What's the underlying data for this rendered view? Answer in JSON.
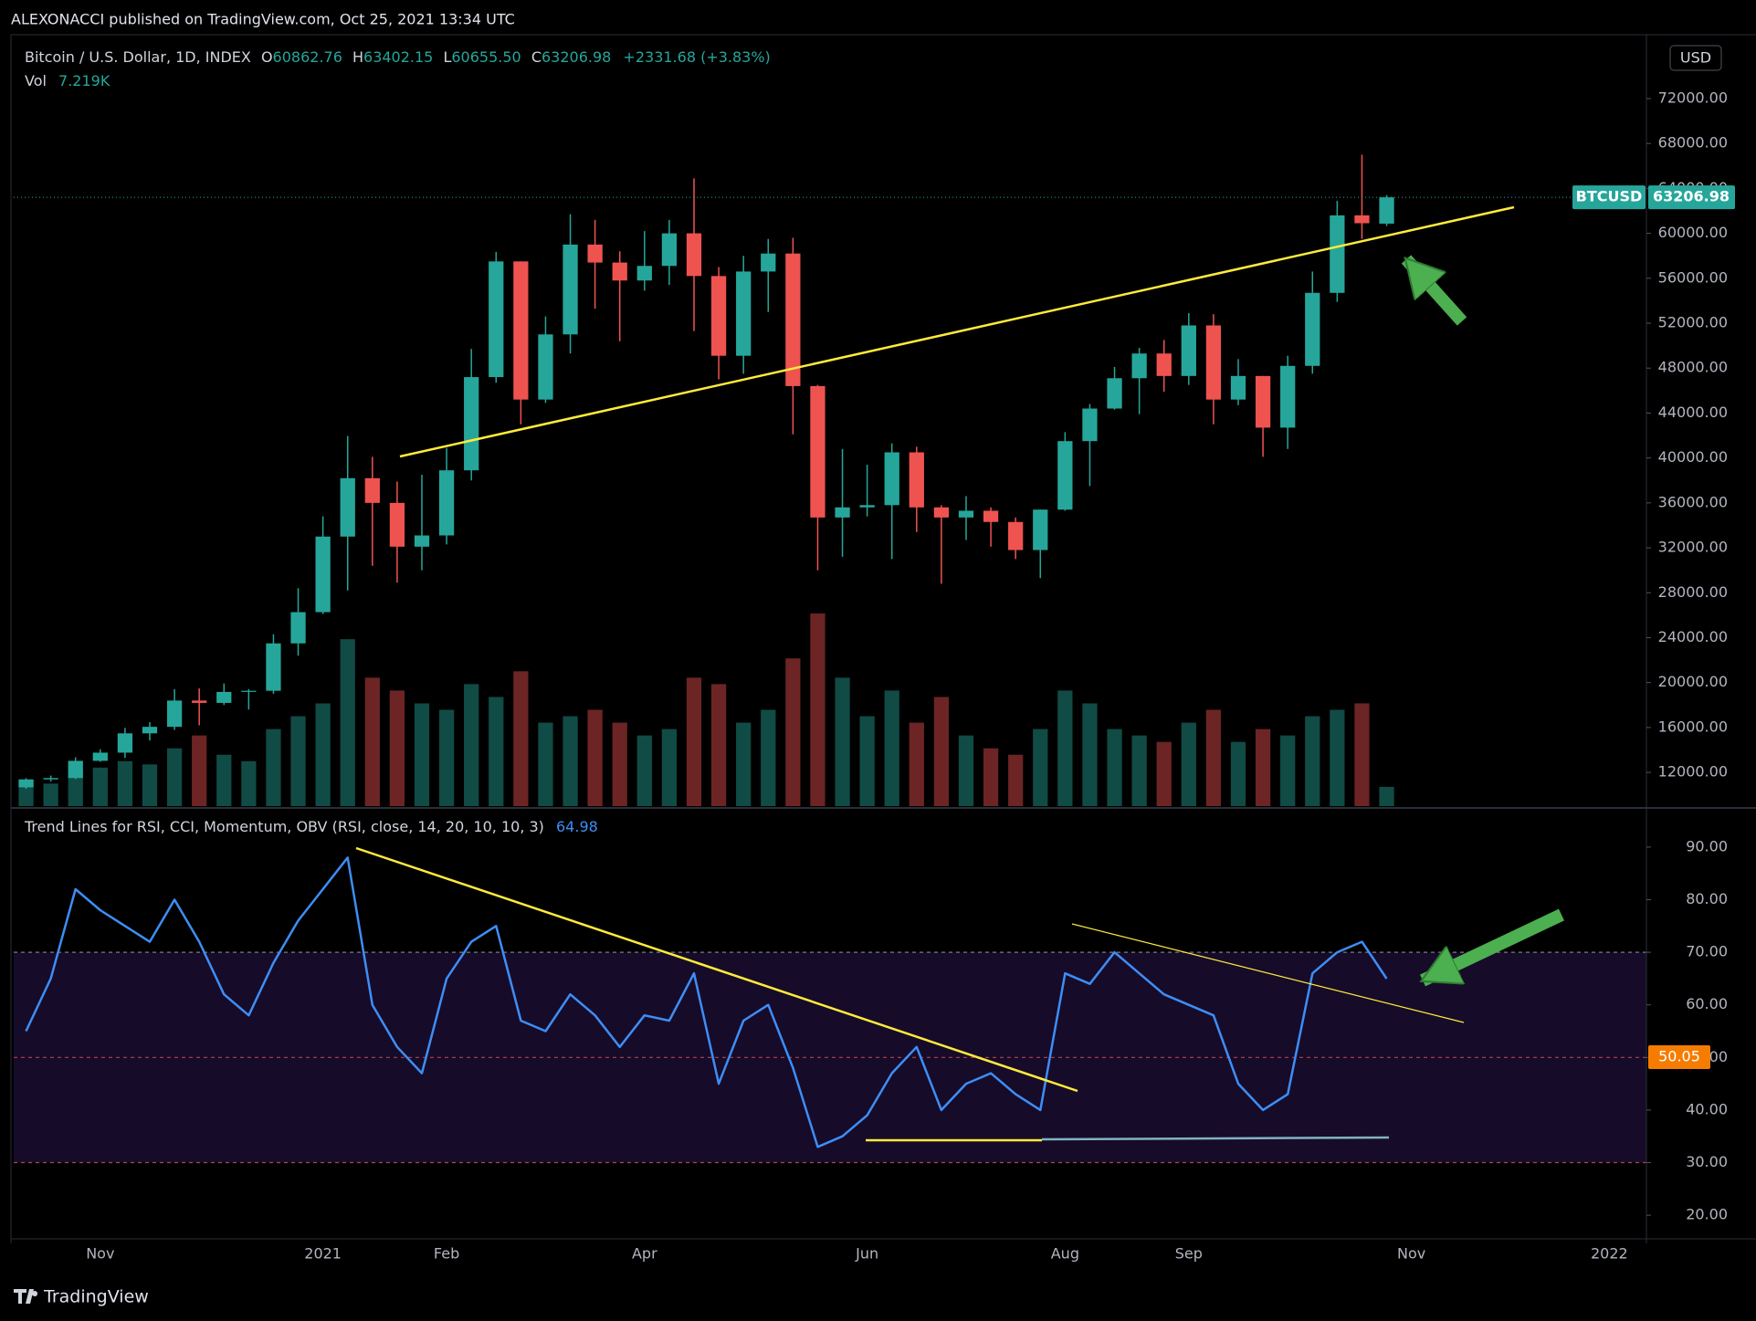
{
  "header": "ALEXONACCI published on TradingView.com, Oct 25, 2021 13:34 UTC",
  "footer": "TradingView",
  "chart_data": [
    {
      "type": "candlestick",
      "title": "Bitcoin / U.S. Dollar, 1D, INDEX",
      "ohlc": [
        {
          "key": "O",
          "value": "60862.76"
        },
        {
          "key": "H",
          "value": "63402.15"
        },
        {
          "key": "L",
          "value": "60655.50"
        },
        {
          "key": "C",
          "value": "63206.98"
        }
      ],
      "change": "+2331.68 (+3.83%)",
      "volume_label": "Vol",
      "volume_value": "7.219K",
      "currency": "USD",
      "symbol": "BTCUSD",
      "last_price": 63206.98,
      "up_color": "#26a69a",
      "down_color": "#ef5350",
      "categories": [
        null,
        null,
        null,
        "Nov",
        null,
        null,
        null,
        null,
        null,
        null,
        null,
        null,
        "2021",
        null,
        null,
        null,
        null,
        "Feb",
        null,
        null,
        null,
        null,
        null,
        null,
        null,
        "Apr",
        null,
        null,
        null,
        null,
        null,
        null,
        null,
        null,
        "Jun",
        null,
        null,
        null,
        null,
        null,
        null,
        null,
        "Aug",
        null,
        null,
        null,
        null,
        "Sep",
        null,
        null,
        null,
        null,
        null,
        null,
        null,
        null,
        "Nov",
        null,
        null,
        null,
        null,
        null,
        null,
        null,
        "2022",
        null
      ],
      "open": [
        10670,
        11380,
        11500,
        13030,
        13760,
        15480,
        16060,
        18400,
        18190,
        19170,
        19270,
        23490,
        26270,
        33000,
        38200,
        36000,
        32100,
        33100,
        38900,
        47200,
        57500,
        45200,
        51000,
        59000,
        57400,
        55800,
        57100,
        60000,
        56200,
        49100,
        56600,
        58200,
        46400,
        34700,
        35600,
        35800,
        40500,
        35600,
        34700,
        35300,
        34300,
        31800,
        35400,
        41500,
        44400,
        47100,
        49300,
        47300,
        51800,
        45200,
        47300,
        42700,
        48200,
        54700,
        61600,
        60862.76,
        null,
        null,
        null,
        null,
        null,
        null,
        null,
        null,
        null,
        null
      ],
      "high": [
        11490,
        11720,
        13350,
        14060,
        15960,
        16480,
        19420,
        19480,
        19920,
        19420,
        24300,
        28400,
        34800,
        41950,
        40100,
        37900,
        38500,
        40900,
        49700,
        58350,
        57500,
        52600,
        61700,
        61200,
        58400,
        60200,
        61200,
        64900,
        57000,
        58000,
        59500,
        59600,
        46500,
        40800,
        39400,
        41300,
        41000,
        35800,
        36600,
        35600,
        34700,
        35400,
        42300,
        44800,
        48100,
        49800,
        50500,
        52900,
        52800,
        48800,
        47300,
        49100,
        56600,
        62900,
        67000,
        63402.15,
        null,
        null,
        null,
        null,
        null,
        null,
        null,
        null,
        null,
        null
      ],
      "low": [
        10530,
        11200,
        11400,
        12950,
        13290,
        14840,
        15780,
        16200,
        18000,
        17600,
        19000,
        22400,
        26100,
        28200,
        30400,
        28900,
        30000,
        32300,
        38000,
        46700,
        43000,
        44900,
        49300,
        53300,
        50400,
        54900,
        55400,
        51300,
        47000,
        47500,
        53000,
        42100,
        30000,
        31200,
        34800,
        31000,
        33400,
        28800,
        32700,
        32100,
        31000,
        29300,
        35300,
        37500,
        44300,
        43900,
        45900,
        46500,
        43000,
        44700,
        40100,
        40800,
        47500,
        53900,
        59500,
        60655.5,
        null,
        null,
        null,
        null,
        null,
        null,
        null,
        null,
        null,
        null
      ],
      "close": [
        11380,
        11500,
        13030,
        13760,
        15480,
        16060,
        18400,
        18190,
        19170,
        19270,
        23490,
        26270,
        33000,
        38200,
        36000,
        32100,
        33100,
        38900,
        47200,
        57500,
        45200,
        51000,
        59000,
        57400,
        55800,
        57100,
        60000,
        56200,
        49100,
        56600,
        58200,
        46400,
        34700,
        35600,
        35800,
        40500,
        35600,
        34700,
        35300,
        34300,
        31800,
        35400,
        41500,
        44400,
        47100,
        49300,
        47300,
        51800,
        45200,
        47300,
        42700,
        48200,
        54700,
        61600,
        60900,
        63206.98,
        null,
        null,
        null,
        null,
        null,
        null,
        null,
        null,
        null,
        null
      ],
      "volume": [
        40,
        35,
        55,
        60,
        70,
        65,
        90,
        110,
        80,
        70,
        120,
        140,
        160,
        260,
        200,
        180,
        160,
        150,
        190,
        170,
        210,
        130,
        140,
        150,
        130,
        110,
        120,
        200,
        190,
        130,
        150,
        230,
        300,
        200,
        140,
        180,
        130,
        170,
        110,
        90,
        80,
        120,
        180,
        160,
        120,
        110,
        100,
        130,
        150,
        100,
        120,
        110,
        140,
        150,
        160,
        30,
        null,
        null,
        null,
        null,
        null,
        null,
        null,
        null,
        null,
        null
      ],
      "ylim": [
        9000,
        77200
      ],
      "yticks": [
        {
          "value": 12000,
          "label": "12000.00"
        },
        {
          "value": 16000,
          "label": "16000.00"
        },
        {
          "value": 20000,
          "label": "20000.00"
        },
        {
          "value": 24000,
          "label": "24000.00"
        },
        {
          "value": 28000,
          "label": "28000.00"
        },
        {
          "value": 32000,
          "label": "32000.00"
        },
        {
          "value": 36000,
          "label": "36000.00"
        },
        {
          "value": 40000,
          "label": "40000.00"
        },
        {
          "value": 44000,
          "label": "44000.00"
        },
        {
          "value": 48000,
          "label": "48000.00"
        },
        {
          "value": 52000,
          "label": "52000.00"
        },
        {
          "value": 56000,
          "label": "56000.00"
        },
        {
          "value": 60000,
          "label": "60000.00"
        },
        {
          "value": 64000,
          "label": "64000.00"
        },
        {
          "value": 68000,
          "label": "68000.00"
        },
        {
          "value": 72000,
          "label": "72000.00"
        }
      ],
      "grid": false
    },
    {
      "type": "line",
      "title": "Trend Lines for RSI, CCI, Momentum, OBV (RSI, close, 14, 20, 10, 10, 3)",
      "last_value": 64.98,
      "marker_value": 50.05,
      "marker_color": "#f57c00",
      "color": "#3d8ef5",
      "values": [
        55,
        65,
        82,
        78,
        75,
        72,
        80,
        72,
        62,
        58,
        68,
        76,
        82,
        88,
        60,
        52,
        47,
        65,
        72,
        75,
        57,
        55,
        62,
        58,
        52,
        58,
        57,
        66,
        45,
        57,
        60,
        48,
        33,
        35,
        39,
        47,
        52,
        40,
        45,
        47,
        43,
        40,
        66,
        64,
        70,
        66,
        62,
        60,
        58,
        45,
        40,
        43,
        66,
        70,
        72,
        64.98,
        null,
        null,
        null,
        null,
        null,
        null,
        null,
        null,
        null,
        null
      ],
      "levels": [
        {
          "value": 70,
          "color": "#787b86"
        },
        {
          "value": 50,
          "color": "#b0454a"
        },
        {
          "value": 30,
          "color": "#b0454a"
        }
      ],
      "band_color": "#170b2a",
      "ylim": [
        16.9,
        97.1
      ],
      "yticks": [
        {
          "value": 20,
          "label": "20.00"
        },
        {
          "value": 30,
          "label": "30.00"
        },
        {
          "value": 40,
          "label": "40.00"
        },
        {
          "value": 50,
          "label": "50.00"
        },
        {
          "value": 60,
          "label": "60.00"
        },
        {
          "value": 70,
          "label": "70.00"
        },
        {
          "value": 80,
          "label": "80.00"
        },
        {
          "value": 90,
          "label": "90.00"
        }
      ],
      "grid": false
    }
  ]
}
